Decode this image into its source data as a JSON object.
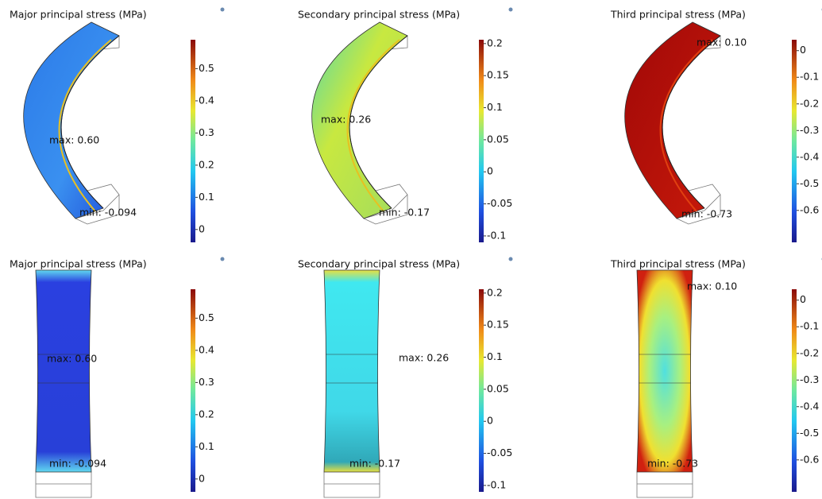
{
  "panels": [
    {
      "title": "Major principal stress (MPa)",
      "max_label": "max: 0.60",
      "min_label": "min: -0.094",
      "colorbar": {
        "range": [
          -0.04,
          0.59
        ],
        "ticks": [
          0,
          0.1,
          0.2,
          0.3,
          0.4,
          0.5
        ]
      }
    },
    {
      "title": "Secondary principal stress (MPa)",
      "max_label": "max: 0.26",
      "min_label": "min: -0.17",
      "colorbar": {
        "range": [
          -0.11,
          0.206
        ],
        "ticks": [
          -0.1,
          -0.05,
          0,
          0.05,
          0.1,
          0.15,
          0.2
        ]
      }
    },
    {
      "title": "Third principal stress (MPa)",
      "max_label": "max: 0.10",
      "min_label": "min: -0.73",
      "colorbar": {
        "range": [
          -0.72,
          0.041
        ],
        "ticks": [
          0,
          -0.1,
          -0.2,
          -0.3,
          -0.4,
          -0.5,
          -0.6
        ]
      }
    },
    {
      "title": "Major principal stress (MPa)",
      "max_label": "max: 0.60",
      "min_label": "min: -0.094",
      "colorbar": {
        "range": [
          -0.04,
          0.59
        ],
        "ticks": [
          0,
          0.1,
          0.2,
          0.3,
          0.4,
          0.5
        ]
      }
    },
    {
      "title": "Secondary principal stress (MPa)",
      "max_label": "max: 0.26",
      "min_label": "min: -0.17",
      "colorbar": {
        "range": [
          -0.11,
          0.206
        ],
        "ticks": [
          -0.1,
          -0.05,
          0,
          0.05,
          0.1,
          0.15,
          0.2
        ]
      }
    },
    {
      "title": "Third principal stress (MPa)",
      "max_label": "max: 0.10",
      "min_label": "min: -0.73",
      "colorbar": {
        "range": [
          -0.72,
          0.041
        ],
        "ticks": [
          0,
          -0.1,
          -0.2,
          -0.3,
          -0.4,
          -0.5,
          -0.6
        ]
      }
    }
  ]
}
